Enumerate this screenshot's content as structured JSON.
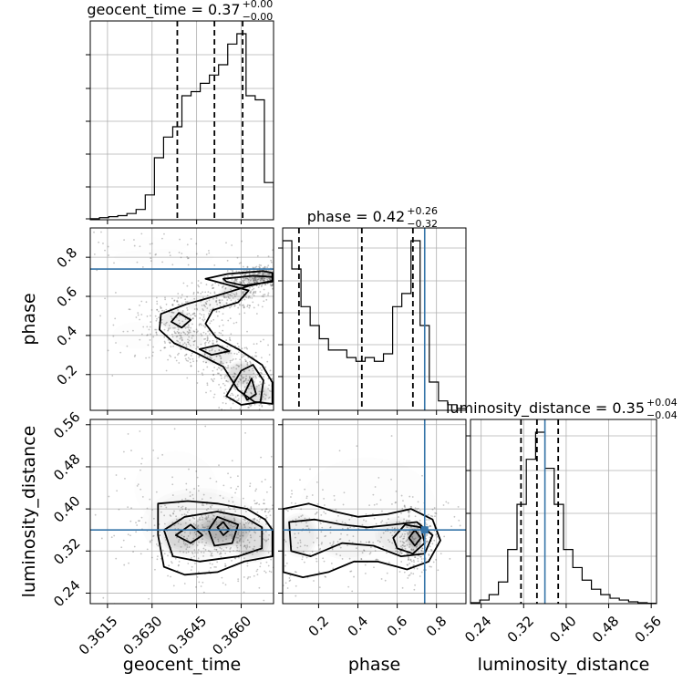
{
  "chart_data": {
    "type": "corner",
    "parameters": [
      "geocent_time",
      "phase",
      "luminosity_distance"
    ],
    "truth": {
      "phase": 0.74,
      "luminosity_distance": 0.36
    },
    "colors": {
      "truth": "#3574a8",
      "hist": "#000000",
      "grid": "#b0b0b0",
      "scatter": "#555555"
    },
    "titles": [
      {
        "param": "geocent_time",
        "text": "geocent_time = 0.37",
        "sup": "+0.00",
        "sub": "−0.00"
      },
      {
        "param": "phase",
        "text": "phase = 0.42",
        "sup": "+0.26",
        "sub": "−0.32"
      },
      {
        "param": "luminosity_distance",
        "text": "luminosity_distance = 0.35",
        "sup": "+0.04",
        "sub": "−0.04"
      }
    ],
    "axis_labels": {
      "geocent_time": "geocent_time",
      "phase": "phase",
      "luminosity_distance": "luminosity_distance"
    },
    "ranges": {
      "geocent_time": [
        0.36092,
        0.36709
      ],
      "phase": [
        0.017,
        0.95
      ],
      "luminosity_distance": [
        0.22,
        0.57
      ]
    },
    "ticks": {
      "geocent_time": {
        "values": [
          0.3615,
          0.363,
          0.3645,
          0.366
        ],
        "labels": [
          "0.3615",
          "0.3630",
          "0.3645",
          "0.3660"
        ]
      },
      "phase": {
        "values": [
          0.2,
          0.4,
          0.6,
          0.8
        ],
        "labels": [
          "0.2",
          "0.4",
          "0.6",
          "0.8"
        ]
      },
      "luminosity_distance": {
        "values": [
          0.24,
          0.32,
          0.4,
          0.48,
          0.56
        ],
        "labels": [
          "0.24",
          "0.32",
          "0.40",
          "0.48",
          "0.56"
        ]
      }
    },
    "quantiles": {
      "geocent_time": [
        0.36385,
        0.3651,
        0.36605
      ],
      "phase": [
        0.1,
        0.42,
        0.68
      ],
      "luminosity_distance": [
        0.315,
        0.345,
        0.385
      ]
    },
    "histograms": {
      "geocent_time": [
        0.005,
        0.01,
        0.015,
        0.02,
        0.03,
        0.05,
        0.12,
        0.3,
        0.4,
        0.45,
        0.6,
        0.62,
        0.66,
        0.7,
        0.75,
        0.85,
        0.9,
        0.6,
        0.58,
        0.18
      ],
      "phase": [
        0.9,
        0.75,
        0.55,
        0.45,
        0.38,
        0.32,
        0.32,
        0.28,
        0.26,
        0.28,
        0.26,
        0.3,
        0.55,
        0.62,
        0.9,
        0.45,
        0.15,
        0.05,
        0.03,
        0.01
      ],
      "luminosity_distance": [
        0.005,
        0.02,
        0.05,
        0.12,
        0.3,
        0.55,
        0.8,
        0.95,
        0.75,
        0.55,
        0.3,
        0.2,
        0.13,
        0.08,
        0.05,
        0.03,
        0.02,
        0.01,
        0.005,
        0.002
      ]
    },
    "contours": {
      "phase_vs_geocent_time": [
        [
          [
            0.3648,
            0.69
          ],
          [
            0.36555,
            0.715
          ],
          [
            0.36675,
            0.73
          ],
          [
            0.36705,
            0.72
          ],
          [
            0.36705,
            0.68
          ],
          [
            0.3663,
            0.655
          ],
          [
            0.3651,
            0.6
          ],
          [
            0.36415,
            0.56
          ],
          [
            0.3633,
            0.51
          ],
          [
            0.36325,
            0.43
          ],
          [
            0.36375,
            0.36
          ],
          [
            0.3645,
            0.31
          ],
          [
            0.3654,
            0.24
          ],
          [
            0.3659,
            0.12
          ],
          [
            0.36645,
            0.06
          ],
          [
            0.36705,
            0.05
          ],
          [
            0.36705,
            0.16
          ],
          [
            0.3667,
            0.25
          ],
          [
            0.3659,
            0.33
          ],
          [
            0.36515,
            0.39
          ],
          [
            0.3648,
            0.46
          ],
          [
            0.36505,
            0.53
          ],
          [
            0.3659,
            0.57
          ],
          [
            0.36625,
            0.63
          ],
          [
            0.36555,
            0.66
          ],
          [
            0.3648,
            0.69
          ]
        ],
        [
          [
            0.3654,
            0.69
          ],
          [
            0.3664,
            0.705
          ],
          [
            0.36705,
            0.7
          ],
          [
            0.36705,
            0.675
          ],
          [
            0.3661,
            0.655
          ],
          [
            0.3655,
            0.675
          ],
          [
            0.3654,
            0.69
          ]
        ],
        [
          [
            0.36365,
            0.47
          ],
          [
            0.3639,
            0.515
          ],
          [
            0.3643,
            0.48
          ],
          [
            0.364,
            0.44
          ],
          [
            0.36365,
            0.47
          ]
        ],
        [
          [
            0.3646,
            0.33
          ],
          [
            0.3652,
            0.35
          ],
          [
            0.3656,
            0.32
          ],
          [
            0.365,
            0.3
          ],
          [
            0.3646,
            0.33
          ]
        ],
        [
          [
            0.3655,
            0.09
          ],
          [
            0.366,
            0.22
          ],
          [
            0.3664,
            0.25
          ],
          [
            0.36675,
            0.17
          ],
          [
            0.36665,
            0.06
          ],
          [
            0.366,
            0.045
          ],
          [
            0.3655,
            0.09
          ]
        ],
        [
          [
            0.3661,
            0.1
          ],
          [
            0.36635,
            0.18
          ],
          [
            0.3665,
            0.1
          ],
          [
            0.3662,
            0.07
          ],
          [
            0.3661,
            0.1
          ]
        ]
      ],
      "luminosity_distance_vs_geocent_time": [
        [
          [
            0.3632,
            0.41
          ],
          [
            0.3642,
            0.415
          ],
          [
            0.3652,
            0.41
          ],
          [
            0.3662,
            0.4
          ],
          [
            0.3668,
            0.38
          ],
          [
            0.36705,
            0.36
          ],
          [
            0.36705,
            0.31
          ],
          [
            0.3661,
            0.3
          ],
          [
            0.3652,
            0.28
          ],
          [
            0.3641,
            0.275
          ],
          [
            0.3634,
            0.29
          ],
          [
            0.3632,
            0.35
          ],
          [
            0.3632,
            0.41
          ]
        ],
        [
          [
            0.3634,
            0.36
          ],
          [
            0.3641,
            0.385
          ],
          [
            0.3652,
            0.395
          ],
          [
            0.3661,
            0.385
          ],
          [
            0.3667,
            0.365
          ],
          [
            0.3667,
            0.325
          ],
          [
            0.3659,
            0.31
          ],
          [
            0.3646,
            0.3
          ],
          [
            0.3637,
            0.31
          ],
          [
            0.3634,
            0.36
          ]
        ],
        [
          [
            0.3638,
            0.35
          ],
          [
            0.3643,
            0.37
          ],
          [
            0.3647,
            0.35
          ],
          [
            0.3643,
            0.335
          ],
          [
            0.3638,
            0.35
          ]
        ],
        [
          [
            0.3649,
            0.36
          ],
          [
            0.3652,
            0.385
          ],
          [
            0.3659,
            0.37
          ],
          [
            0.3657,
            0.335
          ],
          [
            0.3651,
            0.33
          ],
          [
            0.3649,
            0.36
          ]
        ],
        [
          [
            0.3652,
            0.365
          ],
          [
            0.3654,
            0.375
          ],
          [
            0.3656,
            0.36
          ],
          [
            0.3654,
            0.35
          ],
          [
            0.3652,
            0.365
          ]
        ]
      ],
      "luminosity_distance_vs_phase": [
        [
          [
            0.02,
            0.4
          ],
          [
            0.15,
            0.41
          ],
          [
            0.28,
            0.395
          ],
          [
            0.4,
            0.385
          ],
          [
            0.55,
            0.39
          ],
          [
            0.67,
            0.4
          ],
          [
            0.78,
            0.38
          ],
          [
            0.82,
            0.34
          ],
          [
            0.76,
            0.3
          ],
          [
            0.65,
            0.285
          ],
          [
            0.5,
            0.3
          ],
          [
            0.38,
            0.3
          ],
          [
            0.25,
            0.28
          ],
          [
            0.12,
            0.27
          ],
          [
            0.02,
            0.28
          ],
          [
            0.02,
            0.4
          ]
        ],
        [
          [
            0.05,
            0.375
          ],
          [
            0.18,
            0.38
          ],
          [
            0.32,
            0.37
          ],
          [
            0.45,
            0.365
          ],
          [
            0.58,
            0.37
          ],
          [
            0.7,
            0.375
          ],
          [
            0.78,
            0.35
          ],
          [
            0.74,
            0.315
          ],
          [
            0.62,
            0.31
          ],
          [
            0.48,
            0.33
          ],
          [
            0.32,
            0.335
          ],
          [
            0.16,
            0.31
          ],
          [
            0.06,
            0.32
          ],
          [
            0.05,
            0.375
          ]
        ],
        [
          [
            0.58,
            0.345
          ],
          [
            0.64,
            0.37
          ],
          [
            0.72,
            0.365
          ],
          [
            0.74,
            0.335
          ],
          [
            0.68,
            0.315
          ],
          [
            0.6,
            0.325
          ],
          [
            0.58,
            0.345
          ]
        ],
        [
          [
            0.66,
            0.345
          ],
          [
            0.69,
            0.36
          ],
          [
            0.72,
            0.345
          ],
          [
            0.69,
            0.33
          ],
          [
            0.66,
            0.345
          ]
        ]
      ]
    },
    "density_blobs": {
      "phase_vs_geocent_time": [
        [
          0.3669,
          0.705,
          0.0003,
          0.018,
          0.9
        ],
        [
          0.3664,
          0.69,
          0.0003,
          0.02,
          0.7
        ],
        [
          0.3658,
          0.62,
          0.0004,
          0.03,
          0.5
        ],
        [
          0.3648,
          0.56,
          0.0005,
          0.03,
          0.4
        ],
        [
          0.3638,
          0.48,
          0.0004,
          0.04,
          0.5
        ],
        [
          0.3642,
          0.38,
          0.0004,
          0.04,
          0.4
        ],
        [
          0.3652,
          0.3,
          0.0004,
          0.04,
          0.5
        ],
        [
          0.366,
          0.2,
          0.0004,
          0.05,
          0.6
        ],
        [
          0.3665,
          0.1,
          0.0004,
          0.04,
          0.6
        ],
        [
          0.3634,
          0.8,
          0.0012,
          0.03,
          0.15
        ],
        [
          0.3628,
          0.86,
          0.001,
          0.03,
          0.1
        ],
        [
          0.3625,
          0.4,
          0.0006,
          0.05,
          0.15
        ]
      ],
      "luminosity_distance_vs_geocent_time": [
        [
          0.3653,
          0.36,
          0.0007,
          0.025,
          1.0
        ],
        [
          0.364,
          0.35,
          0.0005,
          0.025,
          0.6
        ],
        [
          0.3664,
          0.34,
          0.0005,
          0.03,
          0.6
        ],
        [
          0.3646,
          0.37,
          0.0014,
          0.05,
          0.3
        ],
        [
          0.3638,
          0.44,
          0.001,
          0.05,
          0.12
        ]
      ],
      "luminosity_distance_vs_phase": [
        [
          0.69,
          0.345,
          0.03,
          0.02,
          1.0
        ],
        [
          0.1,
          0.35,
          0.07,
          0.03,
          0.45
        ],
        [
          0.35,
          0.345,
          0.12,
          0.03,
          0.35
        ],
        [
          0.6,
          0.35,
          0.08,
          0.025,
          0.5
        ],
        [
          0.45,
          0.4,
          0.25,
          0.07,
          0.12
        ]
      ]
    }
  }
}
